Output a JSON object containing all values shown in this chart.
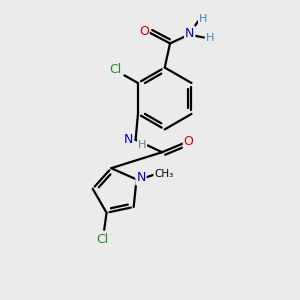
{
  "bg_color": "#ebebeb",
  "atom_colors": {
    "C": "#000000",
    "N": "#0000cc",
    "O": "#cc0000",
    "Cl": "#228b22",
    "H": "#4488bb"
  },
  "bond_color": "#000000",
  "bond_width": 1.6,
  "figsize": [
    3.0,
    3.0
  ],
  "dpi": 100,
  "font_size": 9,
  "font_size_small": 8,
  "xlim": [
    0,
    10
  ],
  "ylim": [
    0,
    10
  ]
}
